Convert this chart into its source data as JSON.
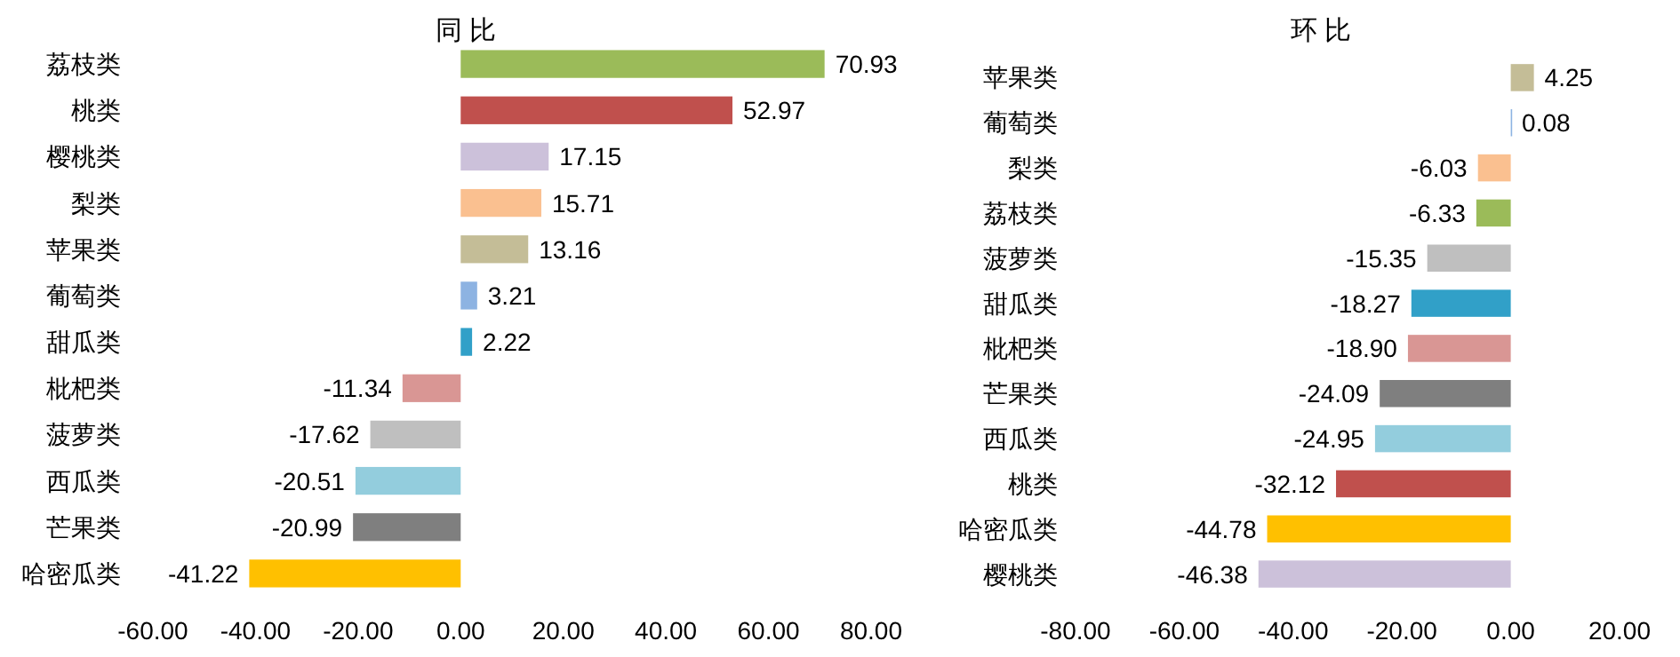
{
  "chart_data": [
    {
      "type": "bar",
      "orientation": "horizontal",
      "title": "同 比",
      "categories": [
        "荔枝类",
        "桃类",
        "樱桃类",
        "梨类",
        "苹果类",
        "葡萄类",
        "甜瓜类",
        "枇杷类",
        "菠萝类",
        "西瓜类",
        "芒果类",
        "哈密瓜类"
      ],
      "values": [
        70.93,
        52.97,
        17.15,
        15.71,
        13.16,
        3.21,
        2.22,
        -11.34,
        -17.62,
        -20.51,
        -20.99,
        -41.22
      ],
      "value_labels": [
        "70.93",
        "52.97",
        "17.15",
        "15.71",
        "13.16",
        "3.21",
        "2.22",
        "-11.34",
        "-17.62",
        "-20.51",
        "-20.99",
        "-41.22"
      ],
      "colors": [
        "#9bbb59",
        "#c0504d",
        "#ccc1da",
        "#fac090",
        "#c4bd97",
        "#8db3e2",
        "#31a0c8",
        "#d99694",
        "#bfbfbf",
        "#93cddd",
        "#7f7f7f",
        "#ffc000"
      ],
      "xlim": [
        -60,
        80
      ],
      "xticks": [
        {
          "value": -60,
          "label": "-60.00"
        },
        {
          "value": -40,
          "label": "-40.00"
        },
        {
          "value": -20,
          "label": "-20.00"
        },
        {
          "value": 0,
          "label": "0.00"
        },
        {
          "value": 20,
          "label": "20.00"
        },
        {
          "value": 40,
          "label": "40.00"
        },
        {
          "value": 60,
          "label": "60.00"
        },
        {
          "value": 80,
          "label": "80.00"
        }
      ]
    },
    {
      "type": "bar",
      "orientation": "horizontal",
      "title": "环 比",
      "categories": [
        "苹果类",
        "葡萄类",
        "梨类",
        "荔枝类",
        "菠萝类",
        "甜瓜类",
        "枇杷类",
        "芒果类",
        "西瓜类",
        "桃类",
        "哈密瓜类",
        "樱桃类"
      ],
      "values": [
        4.25,
        0.08,
        -6.03,
        -6.33,
        -15.35,
        -18.27,
        -18.9,
        -24.09,
        -24.95,
        -32.12,
        -44.78,
        -46.38
      ],
      "value_labels": [
        "4.25",
        "0.08",
        "-6.03",
        "-6.33",
        "-15.35",
        "-18.27",
        "-18.90",
        "-24.09",
        "-24.95",
        "-32.12",
        "-44.78",
        "-46.38"
      ],
      "colors": [
        "#c4bd97",
        "#8db3e2",
        "#fac090",
        "#9bbb59",
        "#bfbfbf",
        "#31a0c8",
        "#d99694",
        "#7f7f7f",
        "#93cddd",
        "#c0504d",
        "#ffc000",
        "#ccc1da"
      ],
      "xlim": [
        -80,
        20
      ],
      "xticks": [
        {
          "value": -80,
          "label": "-80.00"
        },
        {
          "value": -60,
          "label": "-60.00"
        },
        {
          "value": -40,
          "label": "-40.00"
        },
        {
          "value": -20,
          "label": "-20.00"
        },
        {
          "value": 0,
          "label": "0.00"
        },
        {
          "value": 20,
          "label": "20.00"
        }
      ]
    }
  ]
}
